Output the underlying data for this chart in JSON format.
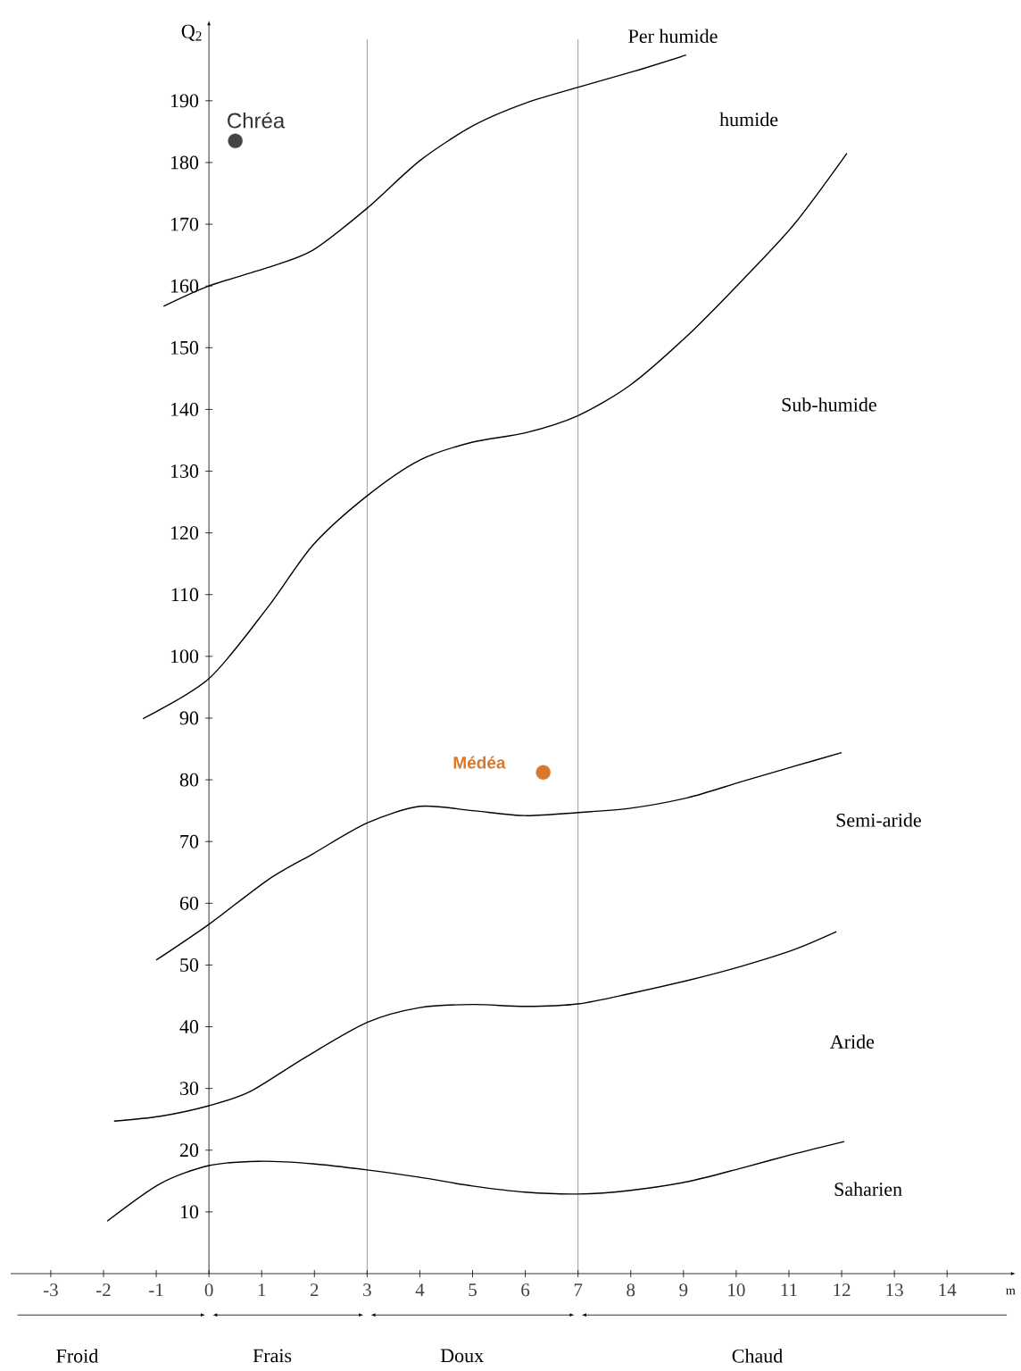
{
  "chart_data": {
    "type": "line",
    "xlabel": "m",
    "ylabel": "Q$_{2}$",
    "xlim": [
      -3.76,
      15.3
    ],
    "ylim": [
      0,
      203
    ],
    "xticks": [
      -3,
      -2,
      -1,
      0,
      1,
      2,
      3,
      4,
      5,
      6,
      7,
      8,
      9,
      10,
      11,
      12,
      13,
      14
    ],
    "yticks": [
      10,
      20,
      30,
      40,
      50,
      60,
      70,
      80,
      90,
      100,
      110,
      120,
      130,
      140,
      150,
      160,
      170,
      180,
      190
    ],
    "series": [
      {
        "color": "#000000",
        "x": [
          -0.86,
          0,
          1.12,
          1.97,
          3,
          4,
          5.02,
          6.03,
          7.05,
          8.07,
          9.05
        ],
        "values": [
          156.7,
          160,
          163,
          165.8,
          172.6,
          180.3,
          186,
          189.7,
          192.3,
          194.8,
          197.4
        ]
      },
      {
        "color": "#000000",
        "x": [
          -1.25,
          0,
          1.12,
          1.97,
          3,
          4,
          5,
          6,
          7,
          8,
          9.08,
          10.1,
          11.1,
          12.1
        ],
        "values": [
          89.9,
          96.4,
          108,
          118,
          126,
          131.8,
          134.7,
          136.2,
          139,
          144,
          152,
          160.8,
          170,
          181.5
        ]
      },
      {
        "color": "#000000",
        "x": [
          -1,
          0,
          1.12,
          1.97,
          3,
          4,
          5,
          6,
          7,
          8,
          9.08,
          10.1,
          11.1,
          12
        ],
        "values": [
          50.8,
          56.6,
          63.8,
          68,
          73,
          75.7,
          75,
          74.2,
          74.7,
          75.4,
          77.1,
          79.7,
          82.2,
          84.4
        ]
      },
      {
        "color": "#000000",
        "x": [
          -1.8,
          -0.92,
          0,
          0.78,
          1.8,
          3,
          4,
          5,
          6,
          7,
          8,
          9.08,
          10.1,
          11.1,
          11.9
        ],
        "values": [
          24.7,
          25.5,
          27.2,
          29.5,
          34.9,
          40.7,
          43.1,
          43.6,
          43.3,
          43.7,
          45.4,
          47.5,
          49.8,
          52.5,
          55.4
        ]
      },
      {
        "color": "#000000",
        "x": [
          -1.93,
          -0.92,
          0,
          0.95,
          1.97,
          3,
          4,
          5,
          6,
          7,
          8,
          9.08,
          10.1,
          11.1,
          12.05
        ],
        "values": [
          8.5,
          14.6,
          17.5,
          18.2,
          17.8,
          16.8,
          15.6,
          14.2,
          13.2,
          12.9,
          13.5,
          14.9,
          17.1,
          19.4,
          21.4
        ]
      },
      {
        "type": "scatter",
        "name": "Chréa",
        "color": "#444444",
        "x": [
          0.5
        ],
        "values": [
          183.5
        ]
      },
      {
        "type": "scatter",
        "name": "Médéa",
        "color": "#d9772b",
        "x": [
          6.34
        ],
        "values": [
          81.2
        ]
      }
    ],
    "ref_lines": [
      {
        "axis": "x",
        "value": 3,
        "color": "#000000"
      },
      {
        "axis": "x",
        "value": 7,
        "color": "#000000"
      }
    ],
    "annotations": [
      "Per humide",
      "humide",
      "Sub-humide",
      "Semi-aride",
      "Aride",
      "Saharien",
      "Froid",
      "Frais",
      "Doux",
      "Chaud"
    ]
  }
}
